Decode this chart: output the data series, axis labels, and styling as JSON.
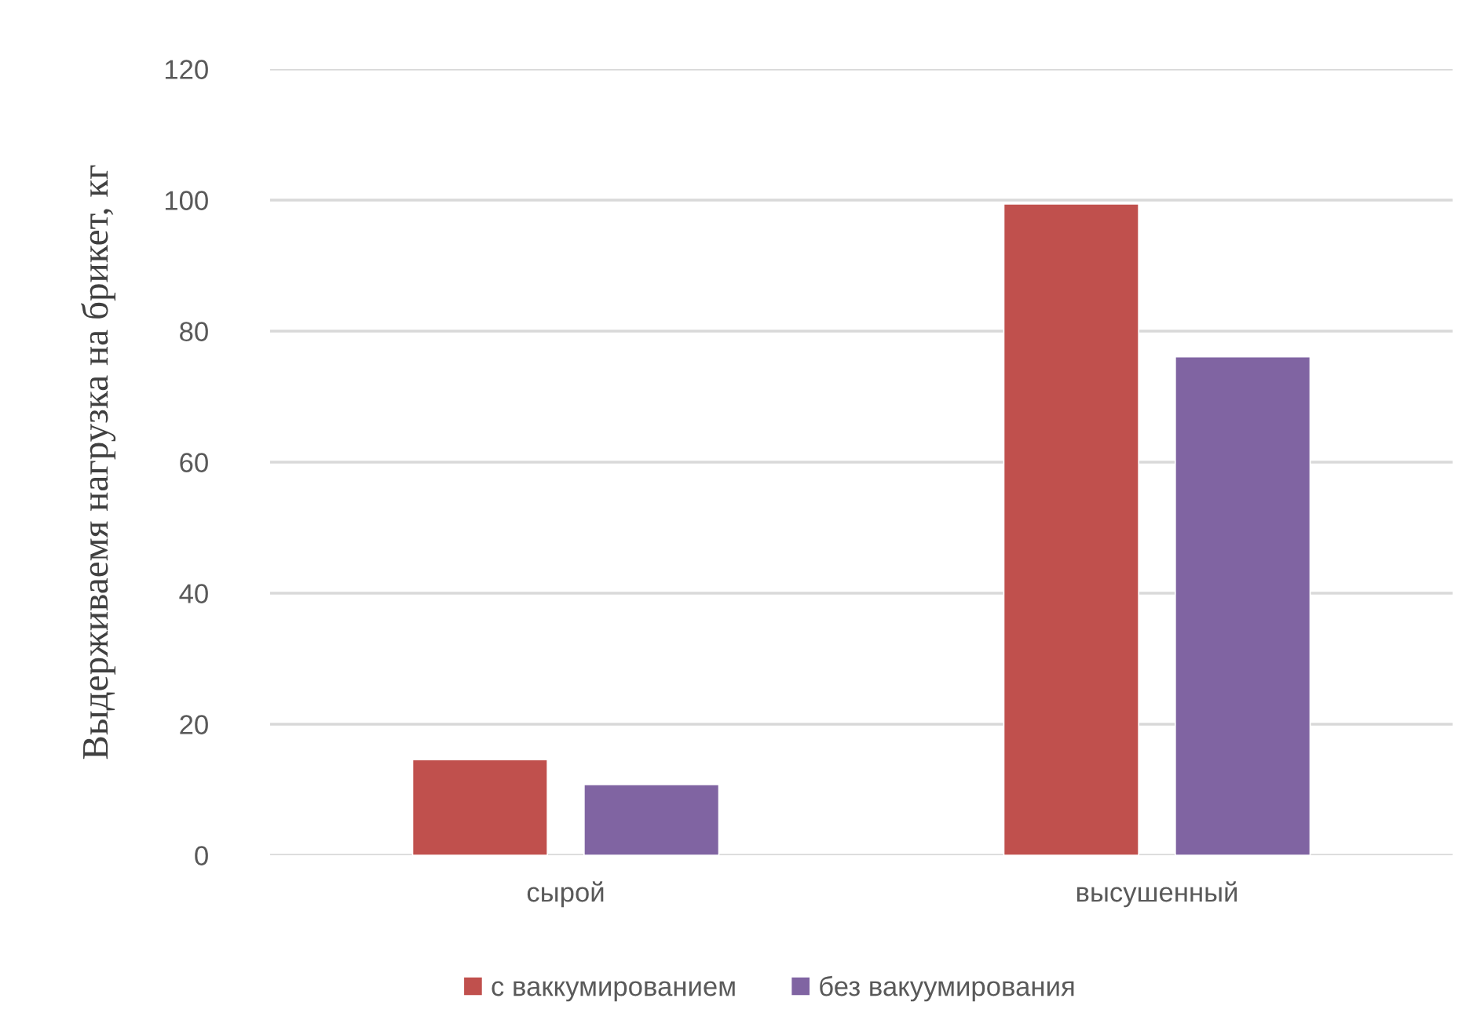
{
  "chart_data": {
    "type": "bar",
    "ylabel": "Выдерживаемя нагрузка на брикет, кг",
    "categories": [
      "сырой",
      "высушенный"
    ],
    "series": [
      {
        "name": "с ваккумированием",
        "color": "#c0504d",
        "values": [
          14.6,
          99.4
        ]
      },
      {
        "name": "без вакуумирования",
        "color": "#8064a2",
        "values": [
          10.8,
          76.1
        ]
      }
    ],
    "ylim": [
      0,
      120
    ],
    "yticks": [
      0,
      20,
      40,
      60,
      80,
      100,
      120
    ],
    "grid": "y",
    "legend": "bottom"
  }
}
